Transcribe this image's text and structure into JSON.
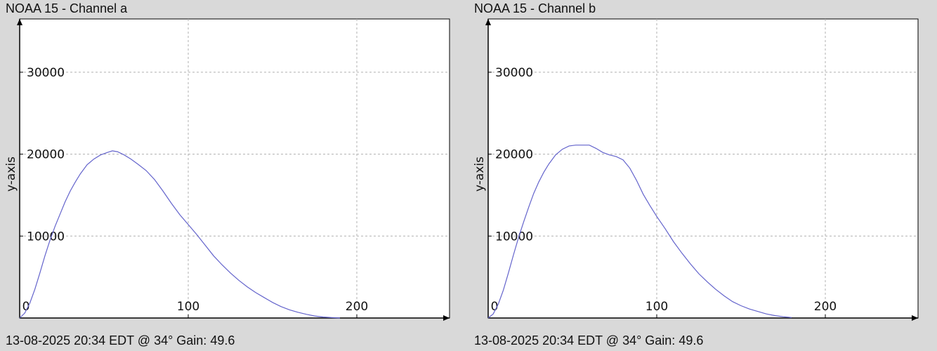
{
  "panels": [
    {
      "title": "NOAA 15 - Channel a",
      "footer": "13-08-2025 20:34 EDT @ 34° Gain: 49.6"
    },
    {
      "title": "NOAA 15 - Channel b",
      "footer": "13-08-2025 20:34 EDT @ 34° Gain: 49.6"
    }
  ],
  "chart_data": [
    {
      "type": "line",
      "title": "NOAA 15 - Channel a",
      "xlabel": "",
      "ylabel": "y-axis",
      "xlim": [
        0,
        255
      ],
      "ylim": [
        0,
        36500
      ],
      "xticks": [
        0,
        100,
        200
      ],
      "yticks": [
        10000,
        20000,
        30000
      ],
      "xtick_labels": [
        "0",
        "100",
        "200"
      ],
      "ytick_labels": [
        "10000",
        "20000",
        "30000"
      ],
      "grid": true,
      "colors": {
        "line": "#6464cc",
        "grid": "#b0b0b0",
        "axis": "#000000",
        "background": "#ffffff"
      },
      "series": [
        {
          "x": [
            0,
            3,
            6,
            9,
            12,
            15,
            18,
            21,
            24,
            27,
            30,
            33,
            36,
            40,
            44,
            48,
            52,
            55,
            58,
            62,
            66,
            70,
            75,
            80,
            85,
            90,
            95,
            100,
            105,
            110,
            115,
            120,
            125,
            130,
            135,
            140,
            145,
            150,
            155,
            160,
            165,
            170,
            175,
            180,
            185,
            190
          ],
          "y": [
            0,
            600,
            1800,
            3500,
            5500,
            7600,
            9500,
            11200,
            12700,
            14200,
            15500,
            16600,
            17600,
            18700,
            19400,
            19900,
            20200,
            20400,
            20300,
            19900,
            19400,
            18800,
            18000,
            16900,
            15500,
            14000,
            12600,
            11400,
            10200,
            8900,
            7600,
            6500,
            5500,
            4600,
            3800,
            3100,
            2500,
            1900,
            1400,
            1000,
            700,
            450,
            250,
            120,
            50,
            0
          ]
        }
      ]
    },
    {
      "type": "line",
      "title": "NOAA 15 - Channel b",
      "xlabel": "",
      "ylabel": "y-axis",
      "xlim": [
        0,
        255
      ],
      "ylim": [
        0,
        36500
      ],
      "xticks": [
        0,
        100,
        200
      ],
      "yticks": [
        10000,
        20000,
        30000
      ],
      "xtick_labels": [
        "0",
        "100",
        "200"
      ],
      "ytick_labels": [
        "10000",
        "20000",
        "30000"
      ],
      "grid": true,
      "colors": {
        "line": "#6464cc",
        "grid": "#b0b0b0",
        "axis": "#000000",
        "background": "#ffffff"
      },
      "series": [
        {
          "x": [
            0,
            3,
            6,
            9,
            12,
            15,
            18,
            21,
            24,
            27,
            30,
            33,
            36,
            40,
            44,
            48,
            52,
            56,
            60,
            64,
            68,
            72,
            76,
            80,
            84,
            88,
            92,
            96,
            100,
            105,
            110,
            115,
            120,
            125,
            130,
            135,
            140,
            145,
            150,
            155,
            160,
            165,
            170,
            175,
            180
          ],
          "y": [
            0,
            500,
            1700,
            3400,
            5500,
            7700,
            9800,
            11700,
            13500,
            15200,
            16600,
            17800,
            18800,
            19900,
            20600,
            21000,
            21100,
            21100,
            21100,
            20700,
            20200,
            19900,
            19700,
            19300,
            18300,
            16800,
            15100,
            13700,
            12400,
            10900,
            9300,
            7900,
            6600,
            5400,
            4400,
            3500,
            2700,
            2000,
            1500,
            1100,
            800,
            500,
            300,
            150,
            50
          ]
        }
      ]
    }
  ]
}
